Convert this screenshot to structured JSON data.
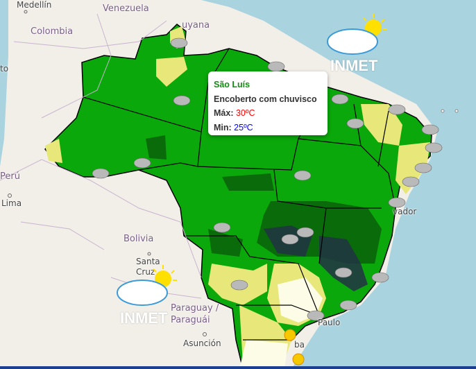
{
  "map": {
    "labels": {
      "medellin": "Medellín",
      "venezuela": "Venezuela",
      "colombia": "Colombia",
      "guyana": "uyana",
      "quito": "to",
      "peru": "Perú",
      "lima": "Lima",
      "bolivia": "Bolivia",
      "santa_cruz": "Santa Cruz",
      "paraguay": "Paraguay / Paraguái",
      "asuncion": "Asunción",
      "sao_paulo": "Paulo",
      "curitiba": "ba",
      "salvador": "vador"
    },
    "legend_colors": {
      "heavy_rain": "#223344",
      "rain": "#0a6b0a",
      "cloudy_rain": "#0aa80a",
      "partly": "#e8e87a",
      "clear": "#fdfce6",
      "water": "#a9d3df"
    }
  },
  "popup": {
    "city": "São Luís",
    "condition": "Encoberto com chuvisco",
    "max_label": "Máx:",
    "max_value": "30ºC",
    "min_label": "Min:",
    "min_value": "25ºC",
    "max_color": "#ff0000",
    "min_color": "#0000ff"
  },
  "logos": [
    {
      "text": "INMET",
      "icon": "partly-cloudy-icon"
    },
    {
      "text": "INMET",
      "icon": "partly-cloudy-icon"
    }
  ]
}
